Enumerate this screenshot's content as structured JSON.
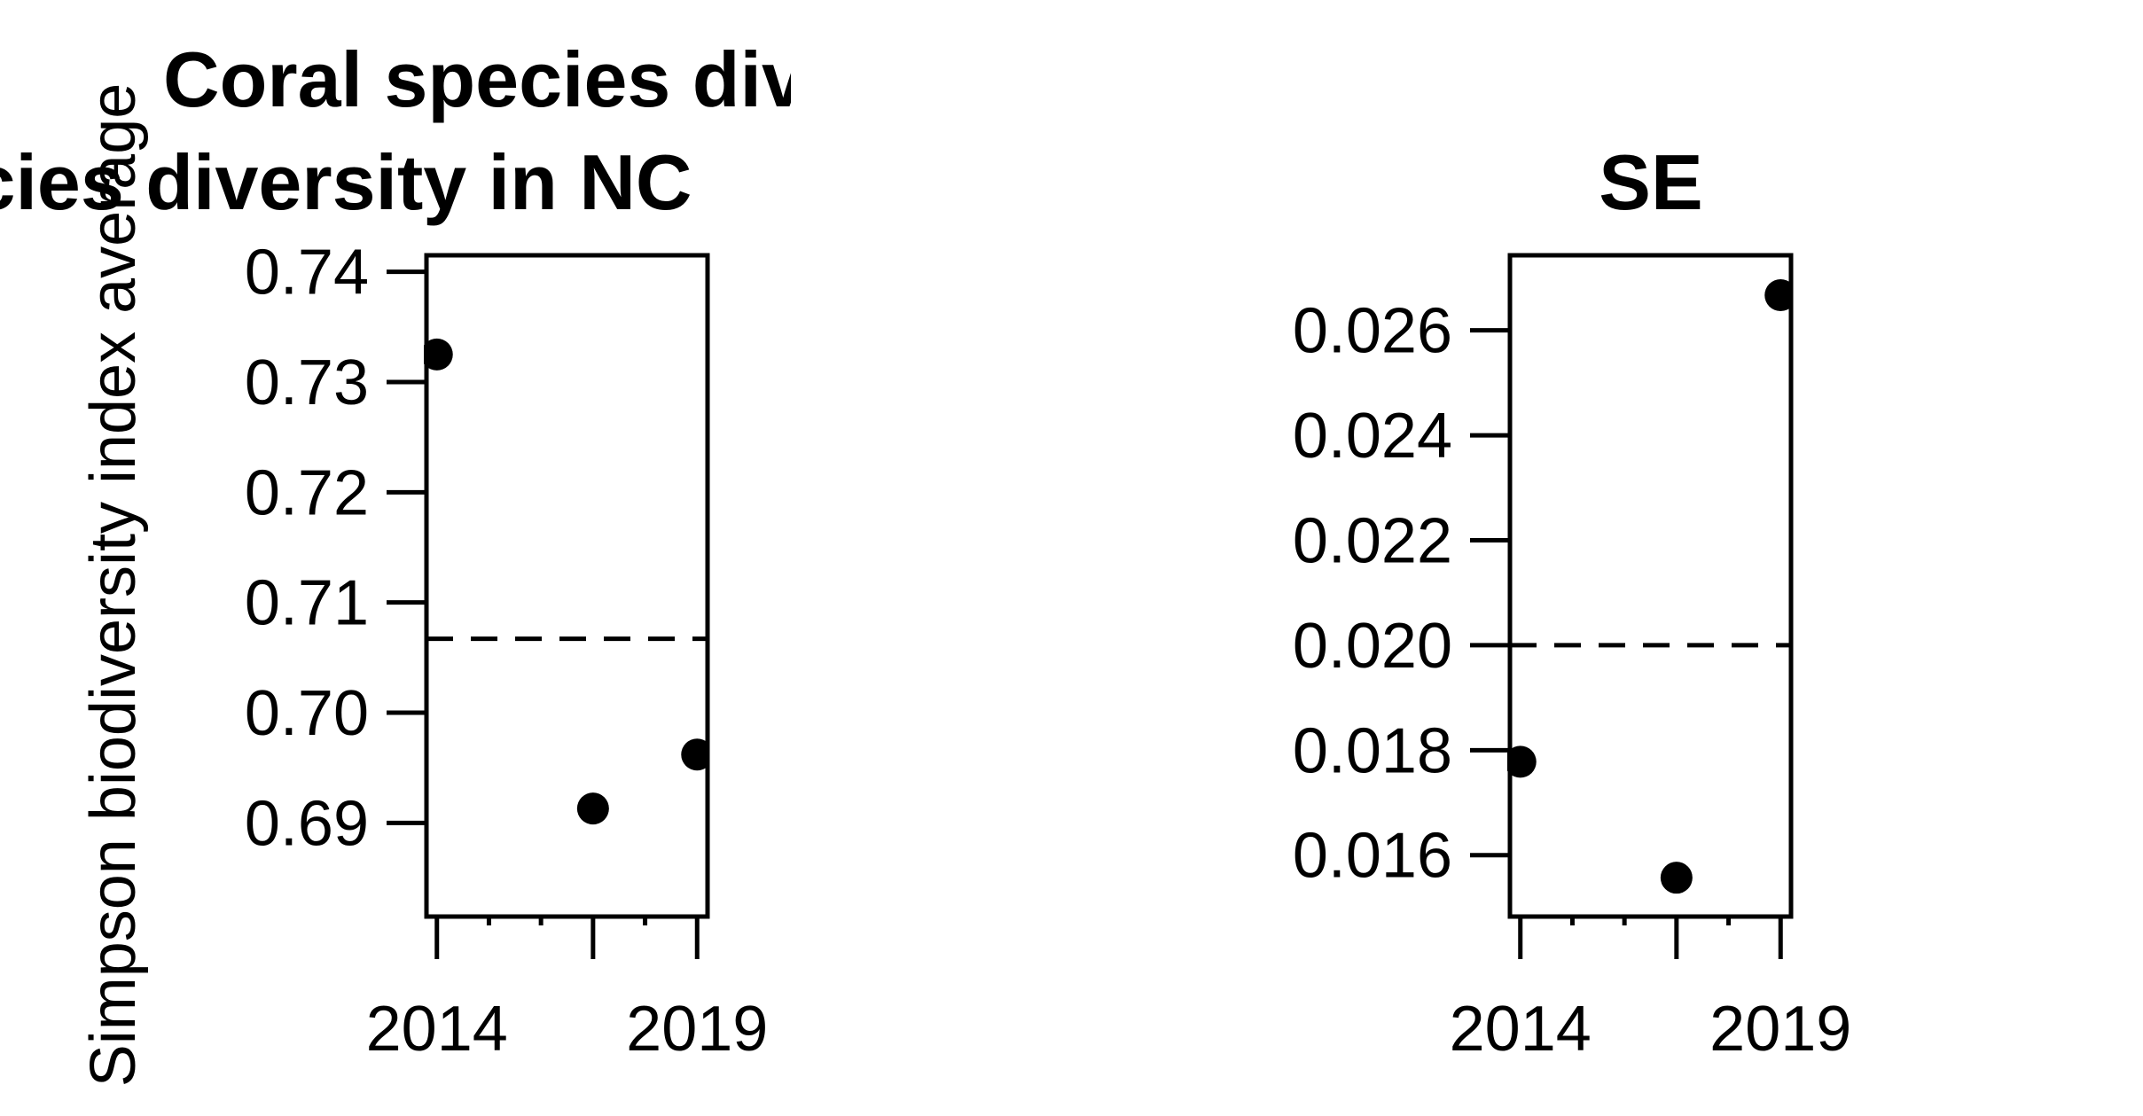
{
  "chart_data": [
    {
      "type": "scatter",
      "title_lines": [
        "Coral species div",
        "ecies diversity in NC"
      ],
      "ylabel": "Simpson biodiversity index average",
      "xlabel": "",
      "x": [
        2014,
        2017,
        2019
      ],
      "x_tick_labels": [
        "2014",
        "2019"
      ],
      "series": [
        {
          "values": [
            0.7325,
            0.6913,
            0.6962
          ]
        }
      ],
      "reference_line": {
        "y": 0.7067,
        "style": "dashed"
      },
      "y_tick_labels": [
        "0.69",
        "0.70",
        "0.71",
        "0.72",
        "0.73",
        "0.74"
      ],
      "ylim": [
        0.6815,
        0.7415
      ],
      "xlim": [
        2013.8,
        2019.2
      ],
      "grid": false,
      "marker_color": "#000000"
    },
    {
      "type": "scatter",
      "title_lines": [
        "SE"
      ],
      "ylabel": "",
      "xlabel": "",
      "x": [
        2014,
        2017,
        2019
      ],
      "x_tick_labels": [
        "2014",
        "2019"
      ],
      "series": [
        {
          "values": [
            0.01778,
            0.01557,
            0.02667
          ]
        }
      ],
      "reference_line": {
        "y": 0.02,
        "style": "dashed"
      },
      "y_tick_labels": [
        "0.016",
        "0.018",
        "0.020",
        "0.022",
        "0.024",
        "0.026"
      ],
      "ylim": [
        0.01483,
        0.02743
      ],
      "xlim": [
        2013.8,
        2019.2
      ],
      "grid": false,
      "marker_color": "#000000"
    }
  ]
}
